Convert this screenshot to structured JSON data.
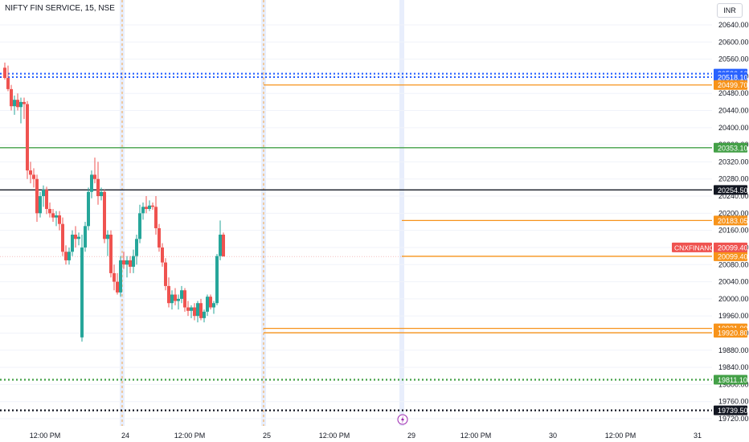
{
  "header": {
    "title": "NIFTY FIN SERVICE, 15, NSE",
    "currency": "INR"
  },
  "chart_data": {
    "type": "candlestick",
    "ylim": [
      19710,
      20690
    ],
    "y_ticks": [
      20640,
      20600,
      20560,
      20520,
      20480,
      20440,
      20400,
      20360,
      20320,
      20280,
      20240,
      20200,
      20160,
      20120,
      20080,
      20040,
      20000,
      19960,
      19920,
      19880,
      19840,
      19800,
      19760,
      19720
    ],
    "x_labels": [
      {
        "label": "12:00 PM",
        "slot": 13
      },
      {
        "label": "24",
        "slot": 38
      },
      {
        "label": "12:00 PM",
        "slot": 58
      },
      {
        "label": "25",
        "slot": 82
      },
      {
        "label": "12:00 PM",
        "slot": 103
      },
      {
        "label": "29",
        "slot": 127
      },
      {
        "label": "12:00 PM",
        "slot": 147
      },
      {
        "label": "30",
        "slot": 171
      },
      {
        "label": "12:00 PM",
        "slot": 192
      },
      {
        "label": "31",
        "slot": 216
      }
    ],
    "session_markers": [
      37,
      81
    ],
    "current_marker": 124,
    "candles": [
      [
        20540,
        20552,
        20512,
        20516
      ],
      [
        20516,
        20545,
        20485,
        20490
      ],
      [
        20490,
        20500,
        20440,
        20450
      ],
      [
        20450,
        20475,
        20430,
        20465
      ],
      [
        20465,
        20480,
        20440,
        20448
      ],
      [
        20448,
        20470,
        20410,
        20460
      ],
      [
        20460,
        20470,
        20420,
        20455
      ],
      [
        20455,
        20462,
        20280,
        20300
      ],
      [
        20300,
        20320,
        20270,
        20290
      ],
      [
        20290,
        20305,
        20260,
        20280
      ],
      [
        20280,
        20290,
        20180,
        20200
      ],
      [
        20200,
        20250,
        20190,
        20240
      ],
      [
        20240,
        20265,
        20215,
        20255
      ],
      [
        20255,
        20262,
        20198,
        20210
      ],
      [
        20210,
        20225,
        20190,
        20200
      ],
      [
        20200,
        20210,
        20180,
        20190
      ],
      [
        20190,
        20205,
        20170,
        20195
      ],
      [
        20195,
        20205,
        20160,
        20175
      ],
      [
        20175,
        20190,
        20100,
        20110
      ],
      [
        20110,
        20125,
        20080,
        20090
      ],
      [
        20090,
        20120,
        20080,
        20110
      ],
      [
        20110,
        20160,
        20100,
        20150
      ],
      [
        20150,
        20170,
        20120,
        20140
      ],
      [
        20140,
        20155,
        20125,
        20145
      ],
      [
        19910,
        20150,
        19900,
        20120
      ],
      [
        20120,
        20180,
        20110,
        20170
      ],
      [
        20170,
        20260,
        20160,
        20250
      ],
      [
        20250,
        20300,
        20235,
        20290
      ],
      [
        20290,
        20330,
        20270,
        20280
      ],
      [
        20280,
        20320,
        20220,
        20240
      ],
      [
        20240,
        20260,
        20230,
        20250
      ],
      [
        20250,
        20255,
        20130,
        20140
      ],
      [
        20140,
        20160,
        20100,
        20150
      ],
      [
        20150,
        20160,
        20050,
        20060
      ],
      [
        20060,
        20080,
        20020,
        20040
      ],
      [
        20040,
        20060,
        20010,
        20015
      ],
      [
        20015,
        20100,
        20005,
        20090
      ],
      [
        20090,
        20110,
        20070,
        20080
      ],
      [
        20080,
        20100,
        20050,
        20090
      ],
      [
        20090,
        20100,
        20060,
        20075
      ],
      [
        20075,
        20115,
        20060,
        20100
      ],
      [
        20100,
        20150,
        20080,
        20140
      ],
      [
        20140,
        20220,
        20130,
        20200
      ],
      [
        20200,
        20225,
        20185,
        20215
      ],
      [
        20215,
        20240,
        20200,
        20210
      ],
      [
        20210,
        20230,
        20205,
        20218
      ],
      [
        20218,
        20225,
        20208,
        20215
      ],
      [
        20215,
        20240,
        20150,
        20165
      ],
      [
        20165,
        20175,
        20110,
        20120
      ],
      [
        20120,
        20130,
        20075,
        20085
      ],
      [
        20085,
        20095,
        20020,
        20030
      ],
      [
        20030,
        20050,
        19980,
        19990
      ],
      [
        19990,
        20020,
        19975,
        20010
      ],
      [
        20010,
        20025,
        19985,
        19995
      ],
      [
        19995,
        20010,
        19975,
        20000
      ],
      [
        20000,
        20030,
        19990,
        20020
      ],
      [
        20020,
        20025,
        19970,
        19980
      ],
      [
        19980,
        19995,
        19960,
        19972
      ],
      [
        19972,
        19985,
        19955,
        19980
      ],
      [
        19980,
        19990,
        19950,
        19960
      ],
      [
        19960,
        19995,
        19945,
        19990
      ],
      [
        19990,
        20000,
        19950,
        19955
      ],
      [
        19955,
        19975,
        19945,
        19970
      ],
      [
        19970,
        20010,
        19960,
        20005
      ],
      [
        20005,
        20010,
        19975,
        19980
      ],
      [
        19980,
        19995,
        19965,
        19990
      ],
      [
        19990,
        20105,
        19985,
        20100
      ],
      [
        20100,
        20183,
        20090,
        20150
      ],
      [
        20150,
        20155,
        20099,
        20099
      ]
    ],
    "hlines": [
      {
        "price": 20526.1,
        "color": "#2962ff",
        "style": "dotted",
        "label": "20526.10"
      },
      {
        "price": 20518.1,
        "color": "#2962ff",
        "style": "dotted",
        "label": "20518.10"
      },
      {
        "price": 20499.7,
        "color": "#f7931a",
        "style": "solid",
        "start_slot": 81,
        "label": "20499.70"
      },
      {
        "price": 20353.1,
        "color": "#43a047",
        "style": "solid",
        "label": "20353.10"
      },
      {
        "price": 20254.5,
        "color": "#131722",
        "style": "solid",
        "label": "20254.50"
      },
      {
        "price": 20183.05,
        "color": "#f7931a",
        "style": "solid",
        "start_slot": 124,
        "label": "20183.05"
      },
      {
        "price": 20099.4,
        "color": "#f7931a",
        "style": "solid",
        "start_slot": 124,
        "label": "20099.40",
        "tag": "CNXFINANCE",
        "tag_value": "20099.40"
      },
      {
        "price": 19931.0,
        "color": "#f7931a",
        "style": "solid",
        "start_slot": 81,
        "label": "19931.00"
      },
      {
        "price": 19920.8,
        "color": "#f7931a",
        "style": "solid",
        "start_slot": 81,
        "label": "19920.80"
      },
      {
        "price": 19811.1,
        "color": "#43a047",
        "style": "dotted",
        "label": "19811.10"
      },
      {
        "price": 19739.5,
        "color": "#131722",
        "style": "dotted",
        "label": "19739.50"
      }
    ],
    "colors": {
      "up": "#26a69a",
      "down": "#ef5350",
      "grid": "#f0f3fa",
      "axis_text": "#131722",
      "highlight": "#e8eefc",
      "marker": "#f7931a"
    }
  }
}
